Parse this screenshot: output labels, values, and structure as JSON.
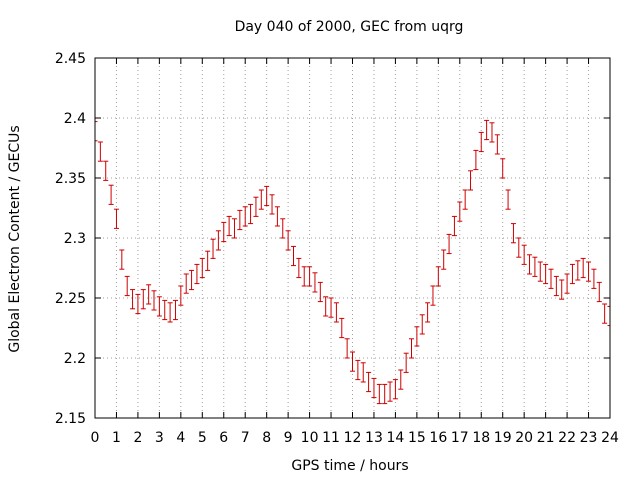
{
  "chart_data": {
    "type": "scatter",
    "title": "Day 040 of 2000, GEC from uqrg",
    "xlabel": "GPS time / hours",
    "ylabel": "Global Electron Content / GECUs",
    "xlim": [
      0,
      24
    ],
    "ylim": [
      2.15,
      2.45
    ],
    "xticks": [
      "0",
      "1",
      "2",
      "3",
      "4",
      "5",
      "6",
      "7",
      "8",
      "9",
      "10",
      "11",
      "12",
      "13",
      "14",
      "15",
      "16",
      "17",
      "18",
      "19",
      "20",
      "21",
      "22",
      "23",
      "24"
    ],
    "yticks": [
      "2.15",
      "2.2",
      "2.25",
      "2.3",
      "2.35",
      "2.4",
      "2.45"
    ],
    "grid": true,
    "legend": "none",
    "series_color": "#cc0000",
    "series": [
      {
        "error_bar": 0.008,
        "points": [
          [
            0.0,
            2.389
          ],
          [
            0.25,
            2.372
          ],
          [
            0.5,
            2.356
          ],
          [
            0.75,
            2.336
          ],
          [
            1.0,
            2.316
          ],
          [
            1.25,
            2.282
          ],
          [
            1.5,
            2.26
          ],
          [
            1.75,
            2.249
          ],
          [
            2.0,
            2.245
          ],
          [
            2.25,
            2.249
          ],
          [
            2.5,
            2.253
          ],
          [
            2.75,
            2.248
          ],
          [
            3.0,
            2.243
          ],
          [
            3.25,
            2.24
          ],
          [
            3.5,
            2.238
          ],
          [
            3.75,
            2.24
          ],
          [
            4.0,
            2.252
          ],
          [
            4.25,
            2.262
          ],
          [
            4.5,
            2.265
          ],
          [
            4.75,
            2.27
          ],
          [
            5.0,
            2.275
          ],
          [
            5.25,
            2.281
          ],
          [
            5.5,
            2.291
          ],
          [
            5.75,
            2.298
          ],
          [
            6.0,
            2.305
          ],
          [
            6.25,
            2.31
          ],
          [
            6.5,
            2.308
          ],
          [
            6.75,
            2.315
          ],
          [
            7.0,
            2.318
          ],
          [
            7.25,
            2.32
          ],
          [
            7.5,
            2.326
          ],
          [
            7.75,
            2.332
          ],
          [
            8.0,
            2.335
          ],
          [
            8.25,
            2.328
          ],
          [
            8.5,
            2.318
          ],
          [
            8.75,
            2.308
          ],
          [
            9.0,
            2.298
          ],
          [
            9.25,
            2.285
          ],
          [
            9.5,
            2.275
          ],
          [
            9.75,
            2.268
          ],
          [
            10.0,
            2.268
          ],
          [
            10.25,
            2.263
          ],
          [
            10.5,
            2.255
          ],
          [
            10.75,
            2.243
          ],
          [
            11.0,
            2.242
          ],
          [
            11.25,
            2.238
          ],
          [
            11.5,
            2.225
          ],
          [
            11.75,
            2.208
          ],
          [
            12.0,
            2.197
          ],
          [
            12.25,
            2.19
          ],
          [
            12.5,
            2.188
          ],
          [
            12.75,
            2.18
          ],
          [
            13.0,
            2.175
          ],
          [
            13.25,
            2.17
          ],
          [
            13.5,
            2.17
          ],
          [
            13.75,
            2.172
          ],
          [
            14.0,
            2.174
          ],
          [
            14.25,
            2.182
          ],
          [
            14.5,
            2.196
          ],
          [
            14.75,
            2.208
          ],
          [
            15.0,
            2.218
          ],
          [
            15.25,
            2.228
          ],
          [
            15.5,
            2.238
          ],
          [
            15.75,
            2.252
          ],
          [
            16.0,
            2.268
          ],
          [
            16.25,
            2.282
          ],
          [
            16.5,
            2.295
          ],
          [
            16.75,
            2.31
          ],
          [
            17.0,
            2.322
          ],
          [
            17.25,
            2.332
          ],
          [
            17.5,
            2.348
          ],
          [
            17.75,
            2.365
          ],
          [
            18.0,
            2.38
          ],
          [
            18.25,
            2.39
          ],
          [
            18.5,
            2.388
          ],
          [
            18.75,
            2.378
          ],
          [
            19.0,
            2.358
          ],
          [
            19.25,
            2.332
          ],
          [
            19.5,
            2.304
          ],
          [
            19.75,
            2.292
          ],
          [
            20.0,
            2.286
          ],
          [
            20.25,
            2.278
          ],
          [
            20.5,
            2.276
          ],
          [
            20.75,
            2.272
          ],
          [
            21.0,
            2.27
          ],
          [
            21.25,
            2.266
          ],
          [
            21.5,
            2.26
          ],
          [
            21.75,
            2.257
          ],
          [
            22.0,
            2.262
          ],
          [
            22.25,
            2.27
          ],
          [
            22.5,
            2.273
          ],
          [
            22.75,
            2.275
          ],
          [
            23.0,
            2.272
          ],
          [
            23.25,
            2.266
          ],
          [
            23.5,
            2.255
          ],
          [
            23.75,
            2.237
          ],
          [
            24.0,
            2.235
          ]
        ]
      }
    ]
  }
}
